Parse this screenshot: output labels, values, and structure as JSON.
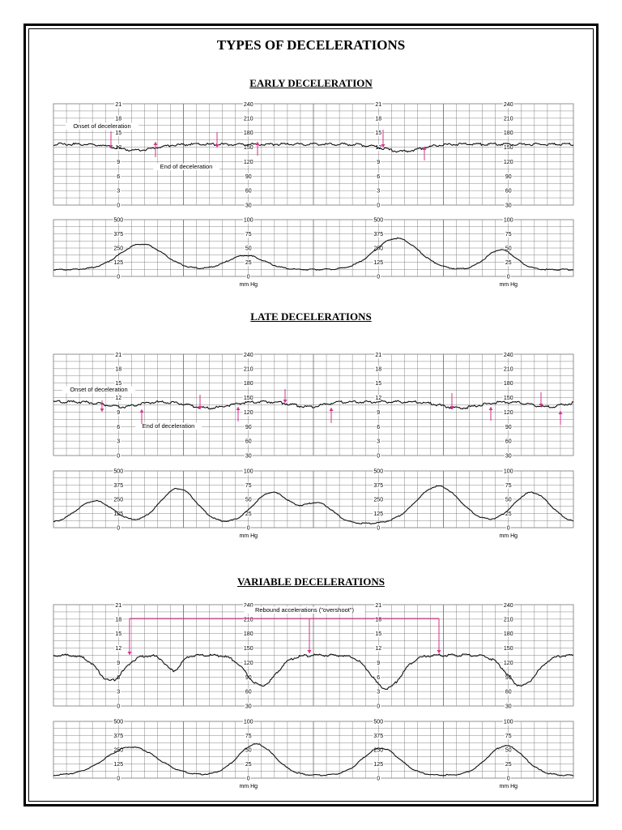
{
  "page": {
    "title": "TYPES OF DECELERATIONS"
  },
  "sections": {
    "early": {
      "title": "EARLY DECELERATION",
      "annotations": [
        "Onset of deceleration",
        "End of deceleration"
      ]
    },
    "late": {
      "title": "LATE DECELERATIONS",
      "annotations": [
        "Onset of deceleration",
        "End of deceleration"
      ]
    },
    "variable": {
      "title": "VARIABLE DECELERATIONS",
      "annotations": [
        "Rebound accelerations (\"overshoot\")"
      ]
    }
  },
  "scales": {
    "fhr_kpa": [
      "21",
      "18",
      "15",
      "12",
      "9",
      "6",
      "3",
      "0"
    ],
    "fhr_bpm": [
      "240",
      "210",
      "180",
      "150",
      "120",
      "90",
      "60",
      "30"
    ],
    "uc_kpa": [
      "500",
      "375",
      "250",
      "125",
      "0"
    ],
    "uc_mmhg": [
      "100",
      "75",
      "50",
      "25",
      "0"
    ],
    "uc_unit": "mm Hg"
  },
  "colors": {
    "grid": "#777777",
    "trace": "#111111",
    "arrow": "#d6338a",
    "text": "#000000"
  }
}
